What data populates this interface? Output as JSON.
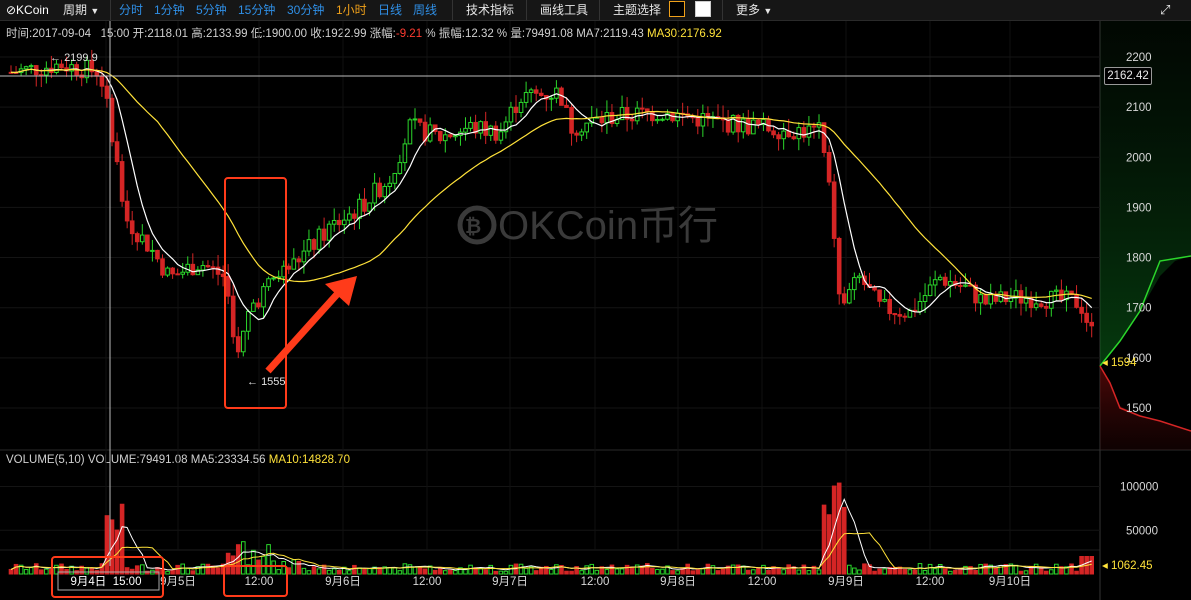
{
  "toolbar": {
    "logo": "⊘KCoin",
    "period_label": "周期",
    "intervals": [
      "分时",
      "1分钟",
      "5分钟",
      "15分钟",
      "30分钟",
      "1小时",
      "日线",
      "周线"
    ],
    "active_interval": "1小时",
    "indicators_label": "技术指标",
    "drawing_label": "画线工具",
    "theme_label": "主题选择",
    "more_label": "更多"
  },
  "info": {
    "time_label": "时间:",
    "time_value": "2017-09-04   15:00",
    "open_label": "开:",
    "open_value": "2118.01",
    "high_label": "高:",
    "high_value": "2133.99",
    "low_label": "低:",
    "low_value": "1900.00",
    "close_label": "收:",
    "close_value": "1922.99",
    "change_label": "涨幅:",
    "change_value": "-9.21",
    "change_unit": "%",
    "amplitude_label": "振幅:",
    "amplitude_value": "12.32 %",
    "volume_label": "量:",
    "volume_value": "79491.08",
    "ma7_label": "MA7:",
    "ma7_value": "2119.43",
    "ma30_label": "MA30:",
    "ma30_value": "2176.92"
  },
  "volume_info": {
    "title": "VOLUME(5,10)",
    "volume_label": "VOLUME:",
    "volume_value": "79491.08",
    "ma5_label": "MA5:",
    "ma5_value": "23334.56",
    "ma10_label": "MA10:",
    "ma10_value": "14828.70"
  },
  "price_axis": {
    "ticks": [
      "2200",
      "2100",
      "2000",
      "1900",
      "1800",
      "1700",
      "1600",
      "1500"
    ]
  },
  "volume_axis": {
    "ticks": [
      "100000",
      "50000"
    ]
  },
  "crosshair_price": "2162.42",
  "last_price": "1594",
  "last_volume": "1062.45",
  "high_marker": "2199.9",
  "low_marker": "1555",
  "watermark": "OKCoin币行",
  "time_axis": {
    "labels": [
      "9月4日  15:00",
      "9月5日",
      "12:00",
      "9月6日",
      "12:00",
      "9月7日",
      "12:00",
      "9月8日",
      "12:00",
      "9月9日",
      "12:00",
      "9月10日"
    ]
  },
  "colors": {
    "up": "#2bd62b",
    "down": "#d42525",
    "ma_short": "#ffffff",
    "ma_long": "#ffe23a",
    "annotation": "#ff3b1a"
  }
}
